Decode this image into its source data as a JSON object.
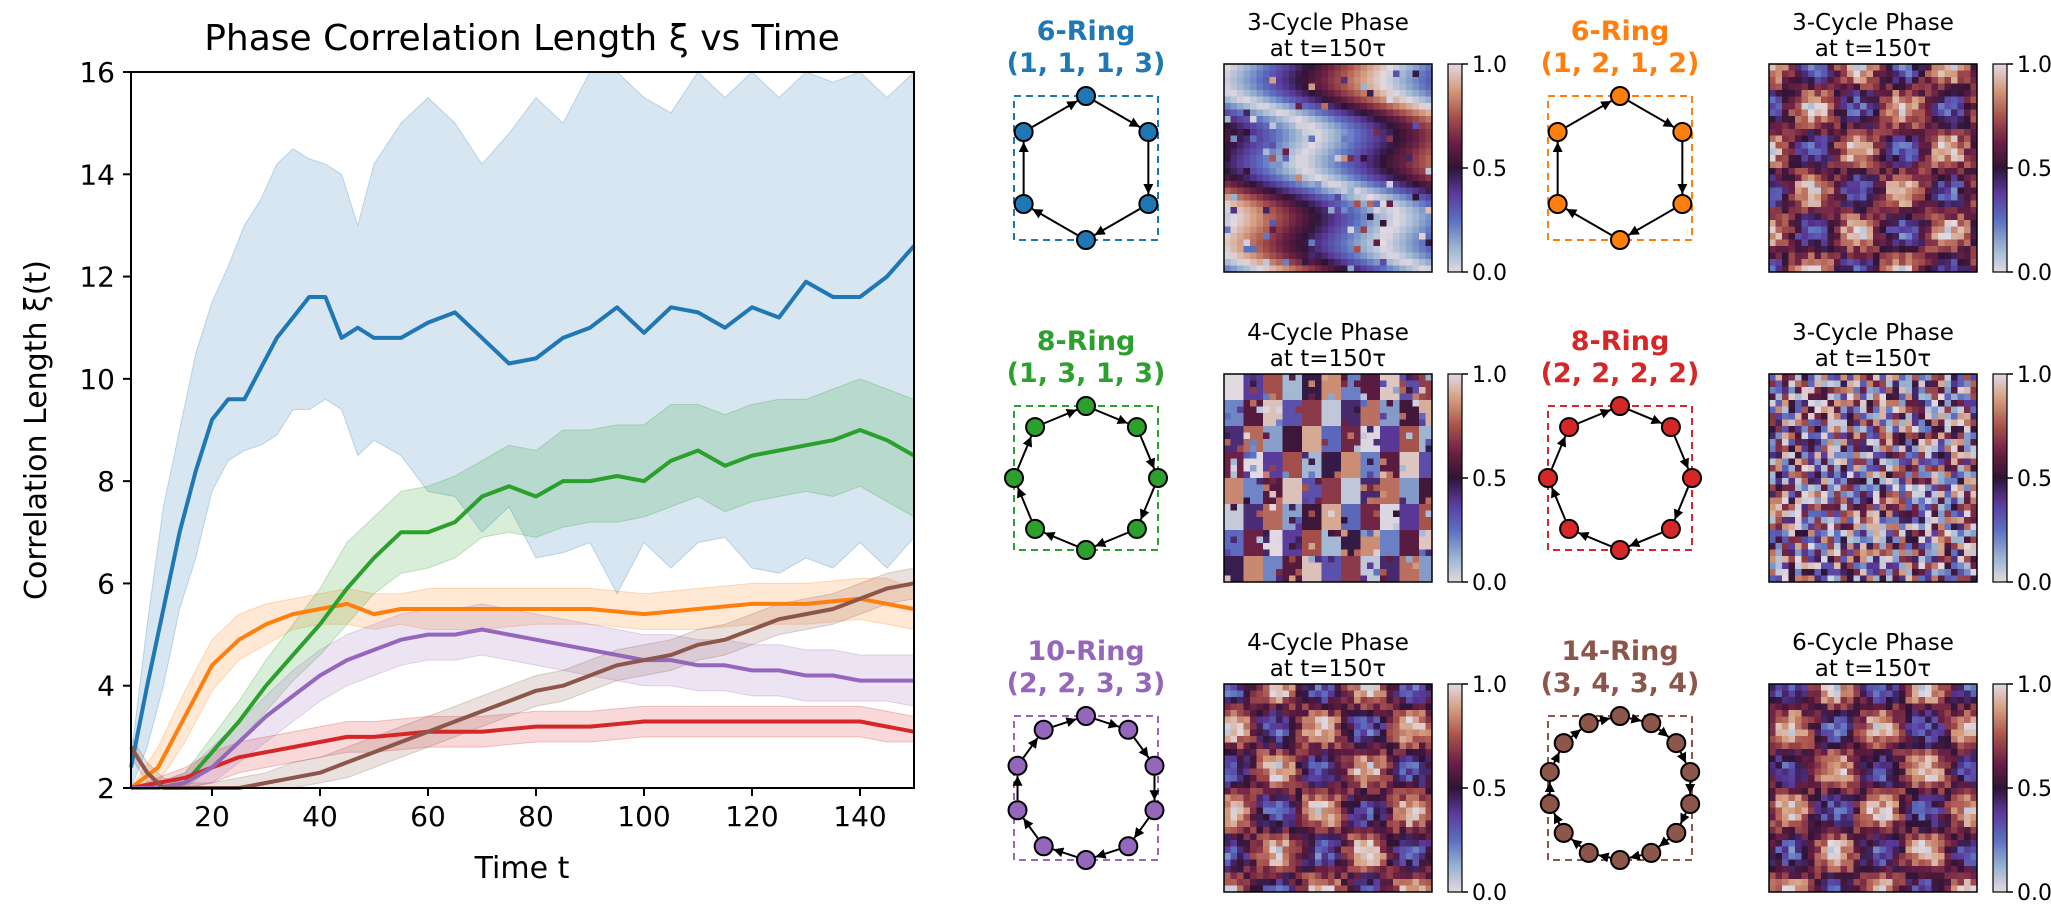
{
  "chart_data": {
    "type": "line",
    "title": "Phase Correlation Length ξ vs Time",
    "xlabel": "Time t",
    "ylabel": "Correlation Length ξ(t)",
    "xlim": [
      5,
      150
    ],
    "ylim": [
      2,
      16
    ],
    "xticks": [
      20,
      40,
      60,
      80,
      100,
      120,
      140
    ],
    "yticks": [
      2,
      4,
      6,
      8,
      10,
      12,
      14,
      16
    ],
    "grid": false,
    "series": [
      {
        "name": "6-Ring (1, 1, 1, 3)",
        "color": "#1f77b4",
        "x": [
          5,
          8,
          11,
          14,
          17,
          20,
          23,
          26,
          29,
          32,
          35,
          38,
          41,
          44,
          47,
          50,
          55,
          60,
          65,
          70,
          75,
          80,
          85,
          90,
          95,
          100,
          105,
          110,
          115,
          120,
          125,
          130,
          135,
          140,
          145,
          150
        ],
        "values": [
          2.4,
          4.0,
          5.5,
          7.0,
          8.2,
          9.2,
          9.6,
          9.6,
          10.2,
          10.8,
          11.2,
          11.6,
          11.6,
          10.8,
          11.0,
          10.8,
          10.8,
          11.1,
          11.3,
          10.8,
          10.3,
          10.4,
          10.8,
          11.0,
          11.4,
          10.9,
          11.4,
          11.3,
          11.0,
          11.4,
          11.2,
          11.9,
          11.6,
          11.6,
          12.0,
          12.6
        ],
        "lower": [
          2.0,
          2.8,
          4.0,
          5.5,
          6.5,
          7.8,
          8.4,
          8.6,
          8.7,
          8.9,
          9.4,
          9.4,
          9.6,
          9.4,
          8.5,
          8.8,
          8.5,
          7.8,
          7.7,
          7.0,
          7.5,
          6.5,
          6.6,
          6.8,
          5.8,
          6.8,
          6.3,
          6.8,
          6.9,
          6.3,
          6.2,
          6.5,
          6.3,
          6.8,
          6.3,
          6.9
        ],
        "upper": [
          2.6,
          5.2,
          7.5,
          9.0,
          10.5,
          11.5,
          12.2,
          13.0,
          13.5,
          14.2,
          14.5,
          14.3,
          14.2,
          14.0,
          13.0,
          14.2,
          15.0,
          15.5,
          15.0,
          14.2,
          14.8,
          15.5,
          15.0,
          16.0,
          16.0,
          15.5,
          15.2,
          16.0,
          15.5,
          16.0,
          15.5,
          16.0,
          15.8,
          16.0,
          15.5,
          16.0
        ]
      },
      {
        "name": "6-Ring (1, 2, 1, 2)",
        "color": "#ff7f0e",
        "x": [
          5,
          10,
          15,
          20,
          25,
          30,
          35,
          40,
          45,
          50,
          55,
          60,
          70,
          80,
          90,
          100,
          110,
          120,
          130,
          140,
          145,
          150
        ],
        "values": [
          2.0,
          2.4,
          3.4,
          4.4,
          4.9,
          5.2,
          5.4,
          5.5,
          5.6,
          5.4,
          5.5,
          5.5,
          5.5,
          5.5,
          5.5,
          5.4,
          5.5,
          5.6,
          5.6,
          5.7,
          5.6,
          5.5
        ],
        "lower": [
          2.0,
          2.1,
          2.9,
          3.9,
          4.5,
          4.8,
          5.1,
          5.2,
          5.2,
          5.1,
          5.2,
          5.1,
          5.1,
          5.2,
          5.2,
          5.1,
          5.1,
          5.2,
          5.2,
          5.3,
          5.2,
          5.1
        ],
        "upper": [
          2.0,
          2.8,
          3.9,
          4.9,
          5.4,
          5.6,
          5.7,
          5.8,
          5.9,
          5.8,
          5.8,
          5.9,
          5.9,
          5.9,
          5.9,
          5.8,
          5.9,
          6.0,
          6.0,
          6.1,
          6.1,
          5.9
        ]
      },
      {
        "name": "8-Ring (1, 3, 1, 3)",
        "color": "#2ca02c",
        "x": [
          5,
          10,
          15,
          20,
          25,
          30,
          35,
          40,
          45,
          50,
          55,
          60,
          65,
          70,
          75,
          80,
          85,
          90,
          95,
          100,
          105,
          110,
          115,
          120,
          125,
          130,
          135,
          140,
          145,
          150
        ],
        "values": [
          2.0,
          2.0,
          2.1,
          2.7,
          3.3,
          4.0,
          4.6,
          5.2,
          5.9,
          6.5,
          7.0,
          7.0,
          7.2,
          7.7,
          7.9,
          7.7,
          8.0,
          8.0,
          8.1,
          8.0,
          8.4,
          8.6,
          8.3,
          8.5,
          8.6,
          8.7,
          8.8,
          9.0,
          8.8,
          8.5
        ],
        "lower": [
          2.0,
          2.0,
          2.0,
          2.4,
          2.9,
          3.5,
          4.1,
          4.6,
          5.2,
          5.8,
          6.2,
          6.3,
          6.5,
          6.9,
          7.0,
          6.9,
          7.1,
          7.2,
          7.2,
          7.3,
          7.5,
          7.7,
          7.4,
          7.6,
          7.7,
          7.8,
          7.7,
          7.9,
          7.6,
          7.3
        ],
        "upper": [
          2.0,
          2.1,
          2.3,
          3.0,
          3.7,
          4.5,
          5.2,
          5.9,
          6.8,
          7.3,
          7.8,
          7.9,
          8.1,
          8.4,
          8.7,
          8.6,
          9.0,
          9.0,
          9.1,
          9.1,
          9.5,
          9.5,
          9.3,
          9.5,
          9.6,
          9.6,
          9.8,
          10.0,
          9.8,
          9.6
        ]
      },
      {
        "name": "8-Ring (2, 2, 2, 2)",
        "color": "#d62728",
        "x": [
          5,
          10,
          15,
          20,
          25,
          30,
          35,
          40,
          45,
          50,
          60,
          70,
          80,
          90,
          100,
          110,
          120,
          130,
          140,
          145,
          150
        ],
        "values": [
          2.0,
          2.1,
          2.2,
          2.4,
          2.6,
          2.7,
          2.8,
          2.9,
          3.0,
          3.0,
          3.1,
          3.1,
          3.2,
          3.2,
          3.3,
          3.3,
          3.3,
          3.3,
          3.3,
          3.2,
          3.1
        ],
        "lower": [
          2.0,
          2.0,
          2.0,
          2.1,
          2.3,
          2.4,
          2.5,
          2.6,
          2.7,
          2.7,
          2.8,
          2.8,
          2.9,
          2.9,
          3.0,
          3.0,
          3.0,
          3.0,
          3.0,
          2.9,
          2.9
        ],
        "upper": [
          2.0,
          2.2,
          2.4,
          2.7,
          2.9,
          3.0,
          3.1,
          3.2,
          3.3,
          3.3,
          3.4,
          3.4,
          3.5,
          3.5,
          3.6,
          3.6,
          3.6,
          3.6,
          3.6,
          3.5,
          3.4
        ]
      },
      {
        "name": "10-Ring (2, 2, 3, 3)",
        "color": "#9467bd",
        "x": [
          5,
          10,
          15,
          20,
          25,
          30,
          35,
          40,
          45,
          50,
          55,
          60,
          65,
          70,
          75,
          80,
          85,
          90,
          95,
          100,
          105,
          110,
          115,
          120,
          125,
          130,
          135,
          140,
          145,
          150
        ],
        "values": [
          2.0,
          2.0,
          2.1,
          2.4,
          2.9,
          3.4,
          3.8,
          4.2,
          4.5,
          4.7,
          4.9,
          5.0,
          5.0,
          5.1,
          5.0,
          4.9,
          4.8,
          4.7,
          4.6,
          4.5,
          4.5,
          4.4,
          4.4,
          4.3,
          4.3,
          4.2,
          4.2,
          4.1,
          4.1,
          4.1
        ],
        "lower": [
          2.0,
          2.0,
          2.0,
          2.1,
          2.5,
          2.9,
          3.3,
          3.7,
          4.0,
          4.2,
          4.4,
          4.5,
          4.5,
          4.6,
          4.5,
          4.4,
          4.3,
          4.2,
          4.1,
          4.0,
          4.0,
          3.9,
          3.9,
          3.8,
          3.8,
          3.7,
          3.7,
          3.7,
          3.7,
          3.6
        ],
        "upper": [
          2.0,
          2.1,
          2.3,
          2.8,
          3.3,
          3.8,
          4.3,
          4.7,
          5.0,
          5.2,
          5.4,
          5.5,
          5.5,
          5.6,
          5.5,
          5.4,
          5.3,
          5.2,
          5.1,
          5.0,
          5.0,
          4.9,
          4.9,
          4.8,
          4.8,
          4.7,
          4.7,
          4.6,
          4.6,
          4.6
        ]
      },
      {
        "name": "14-Ring (3, 4, 3, 4)",
        "color": "#8c564b",
        "x": [
          5,
          8,
          11,
          15,
          20,
          25,
          30,
          35,
          40,
          45,
          50,
          55,
          60,
          65,
          70,
          75,
          80,
          85,
          90,
          95,
          100,
          105,
          110,
          115,
          120,
          125,
          130,
          135,
          140,
          145,
          150
        ],
        "values": [
          2.8,
          2.3,
          2.0,
          2.0,
          2.0,
          2.0,
          2.1,
          2.2,
          2.3,
          2.5,
          2.7,
          2.9,
          3.1,
          3.3,
          3.5,
          3.7,
          3.9,
          4.0,
          4.2,
          4.4,
          4.5,
          4.6,
          4.8,
          4.9,
          5.1,
          5.3,
          5.4,
          5.5,
          5.7,
          5.9,
          6.0
        ],
        "lower": [
          2.6,
          2.1,
          2.0,
          2.0,
          2.0,
          2.0,
          2.0,
          2.0,
          2.1,
          2.2,
          2.4,
          2.6,
          2.8,
          3.0,
          3.2,
          3.4,
          3.6,
          3.7,
          3.9,
          4.1,
          4.2,
          4.3,
          4.5,
          4.6,
          4.8,
          5.0,
          5.1,
          5.2,
          5.4,
          5.6,
          5.7
        ],
        "upper": [
          3.0,
          2.5,
          2.2,
          2.1,
          2.1,
          2.2,
          2.3,
          2.5,
          2.6,
          2.8,
          3.0,
          3.2,
          3.4,
          3.6,
          3.8,
          4.0,
          4.2,
          4.3,
          4.5,
          4.7,
          4.8,
          4.9,
          5.1,
          5.2,
          5.4,
          5.6,
          5.7,
          5.8,
          6.0,
          6.2,
          6.3
        ]
      }
    ]
  },
  "panels": [
    {
      "ring_name": "6-Ring",
      "partition": "(1, 1, 1, 3)",
      "color": "#1f77b4",
      "blocks": [
        1,
        1,
        1,
        3
      ],
      "heatmap_title_1": "3-Cycle Phase",
      "heatmap_title_2": "at t=150τ",
      "cbar_ticks": [
        "1.0",
        "0.5",
        "0.0"
      ]
    },
    {
      "ring_name": "6-Ring",
      "partition": "(1, 2, 1, 2)",
      "color": "#ff7f0e",
      "blocks": [
        1,
        2,
        1,
        2
      ],
      "heatmap_title_1": "3-Cycle Phase",
      "heatmap_title_2": "at t=150τ",
      "cbar_ticks": [
        "1.0",
        "0.5",
        "0.0"
      ]
    },
    {
      "ring_name": "8-Ring",
      "partition": "(1, 3, 1, 3)",
      "color": "#2ca02c",
      "blocks": [
        1,
        3,
        1,
        3
      ],
      "heatmap_title_1": "4-Cycle Phase",
      "heatmap_title_2": "at t=150τ",
      "cbar_ticks": [
        "1.0",
        "0.5",
        "0.0"
      ]
    },
    {
      "ring_name": "8-Ring",
      "partition": "(2, 2, 2, 2)",
      "color": "#d62728",
      "blocks": [
        2,
        2,
        2,
        2
      ],
      "heatmap_title_1": "3-Cycle Phase",
      "heatmap_title_2": "at t=150τ",
      "cbar_ticks": [
        "1.0",
        "0.5",
        "0.0"
      ]
    },
    {
      "ring_name": "10-Ring",
      "partition": "(2, 2, 3, 3)",
      "color": "#9467bd",
      "blocks": [
        2,
        2,
        3,
        3
      ],
      "heatmap_title_1": "4-Cycle Phase",
      "heatmap_title_2": "at t=150τ",
      "cbar_ticks": [
        "1.0",
        "0.5",
        "0.0"
      ]
    },
    {
      "ring_name": "14-Ring",
      "partition": "(3, 4, 3, 4)",
      "color": "#8c564b",
      "blocks": [
        3,
        4,
        3,
        4
      ],
      "heatmap_title_1": "6-Cycle Phase",
      "heatmap_title_2": "at t=150τ",
      "cbar_ticks": [
        "1.0",
        "0.5",
        "0.0"
      ]
    }
  ],
  "colormap": "twilight_shifted"
}
